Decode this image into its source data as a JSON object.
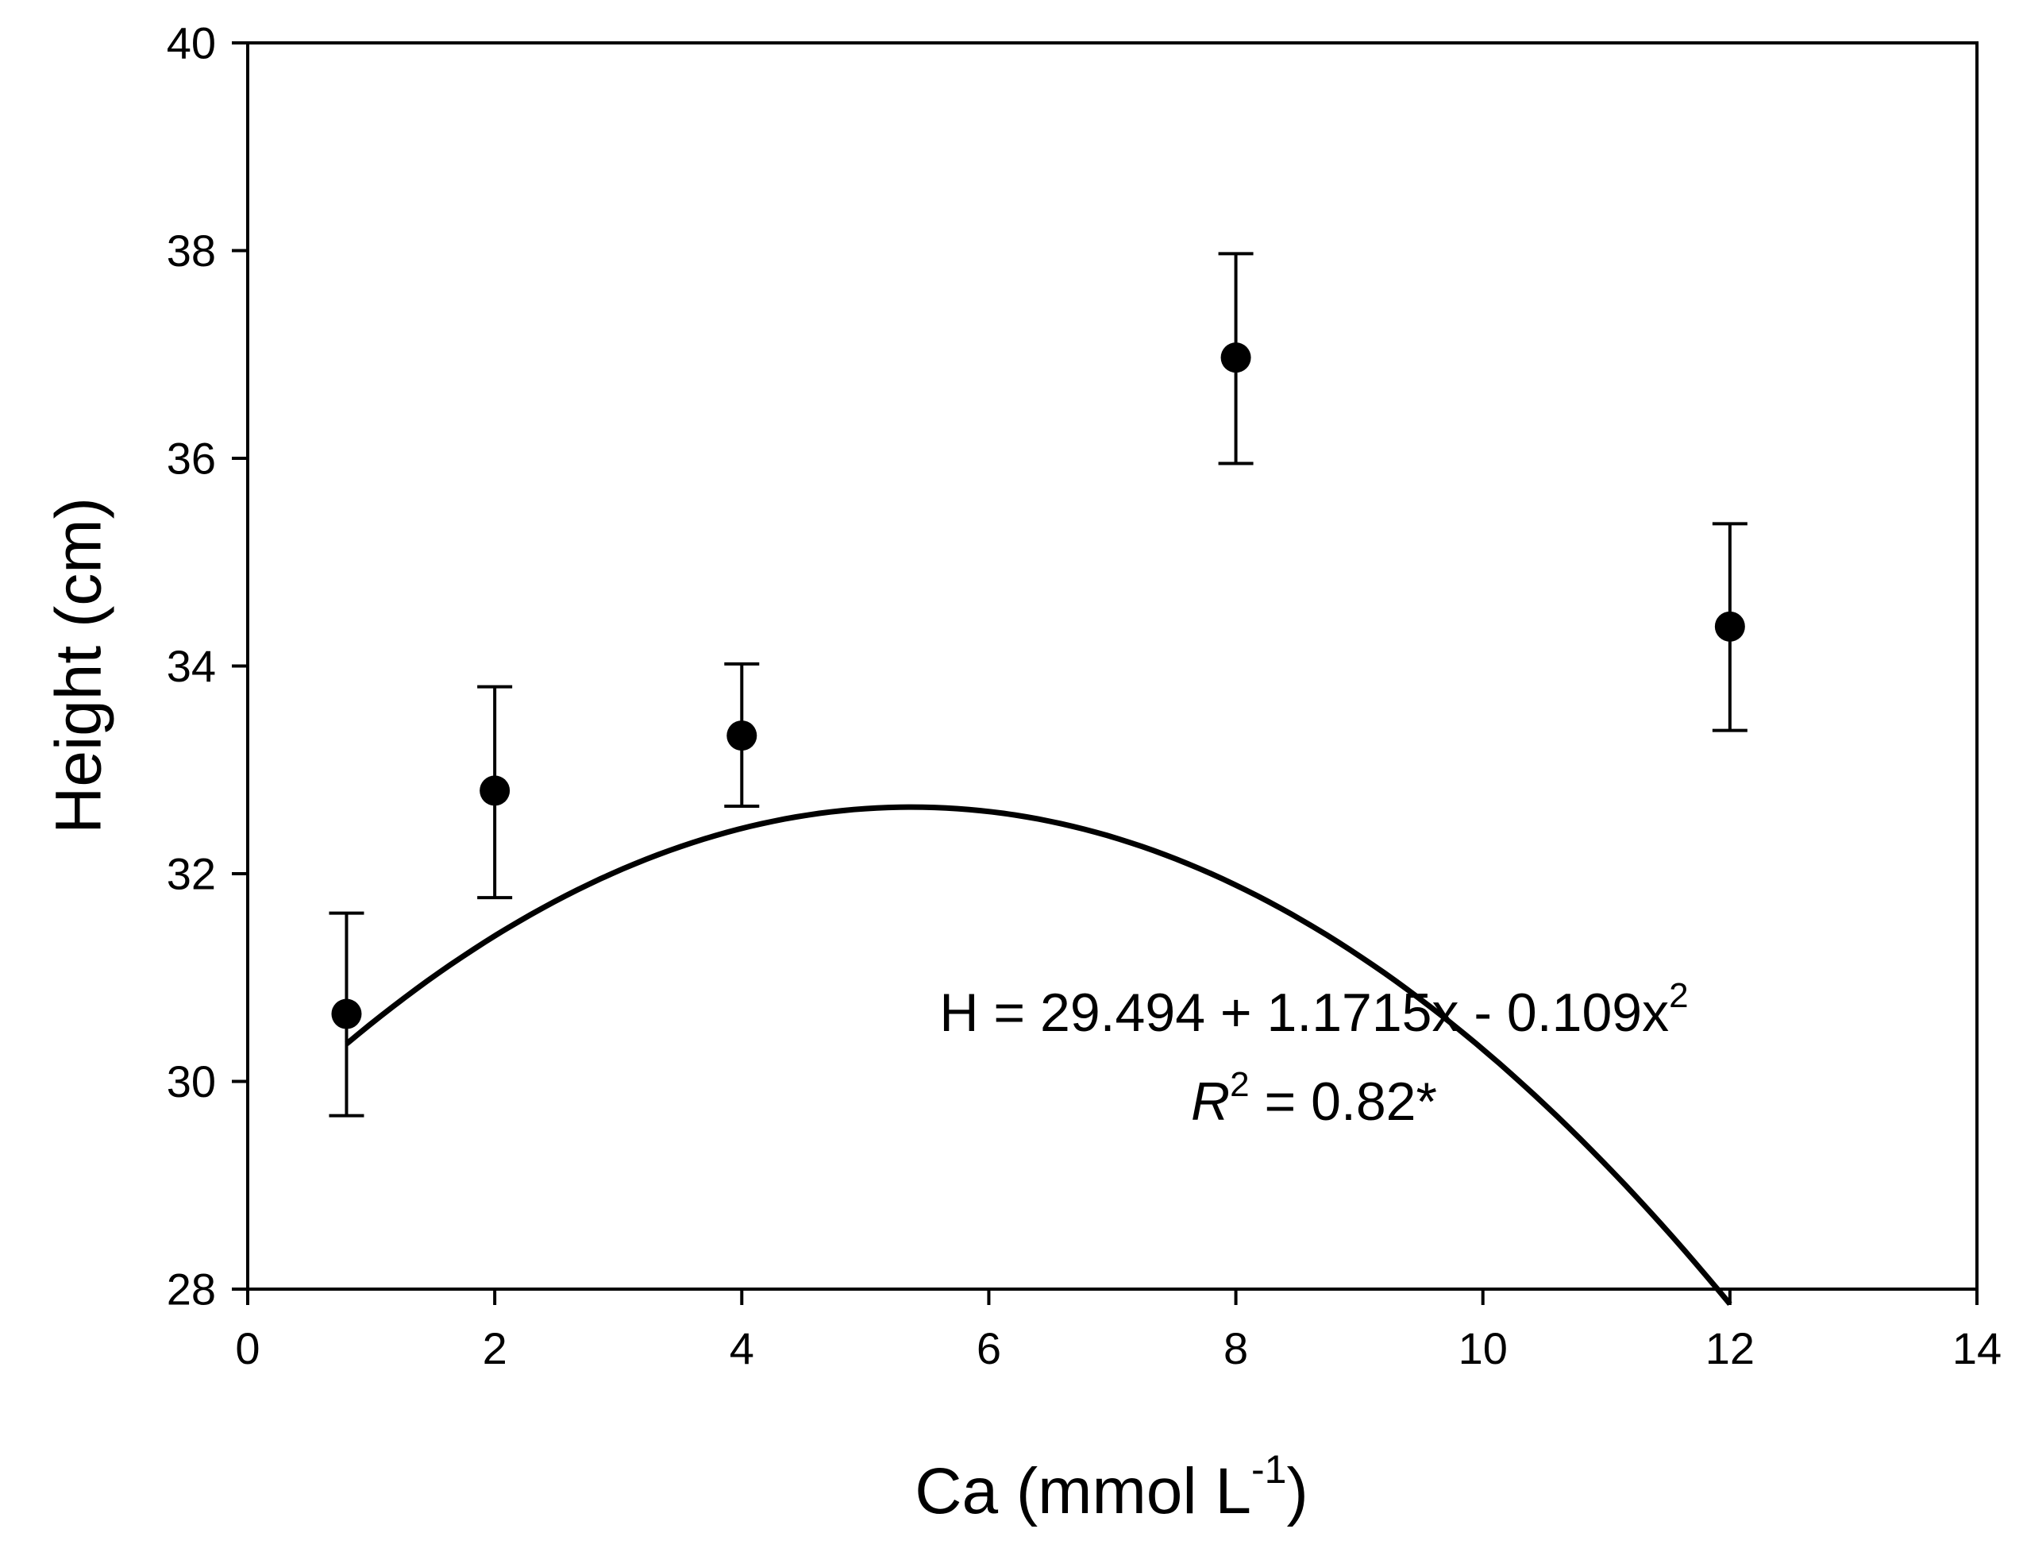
{
  "chart_data": {
    "type": "scatter",
    "xlabel": "Ca (mmol L",
    "xlabel_sup": "-1",
    "xlabel_end": ")",
    "ylabel": "Height (cm)",
    "xlim": [
      0,
      14
    ],
    "ylim": [
      28,
      40
    ],
    "xticks": [
      "0",
      "2",
      "4",
      "6",
      "8",
      "10",
      "12",
      "14"
    ],
    "yticks": [
      "28",
      "30",
      "32",
      "34",
      "36",
      "38",
      "40"
    ],
    "grid": false,
    "series": [
      {
        "points": [
          {
            "x": 0.8,
            "y": 30.65,
            "err_low": 29.67,
            "err_high": 31.62
          },
          {
            "x": 2,
            "y": 32.8,
            "err_low": 31.77,
            "err_high": 33.8
          },
          {
            "x": 4,
            "y": 33.33,
            "err_low": 32.65,
            "err_high": 34.02
          },
          {
            "x": 8,
            "y": 36.97,
            "err_low": 35.95,
            "err_high": 37.97
          },
          {
            "x": 12,
            "y": 34.38,
            "err_low": 33.38,
            "err_high": 35.37
          }
        ]
      }
    ],
    "fit": {
      "model": "quadratic",
      "coefficients": [
        29.494,
        1.1715,
        -0.109
      ],
      "x_range": [
        0.8,
        12
      ]
    },
    "annotations": {
      "equation": "H = 29.494 + 1.1715x - 0.109x",
      "equation_sup": "2",
      "r2_prefix": "R",
      "r2_sup": "2",
      "r2_value": " = 0.82*"
    }
  }
}
